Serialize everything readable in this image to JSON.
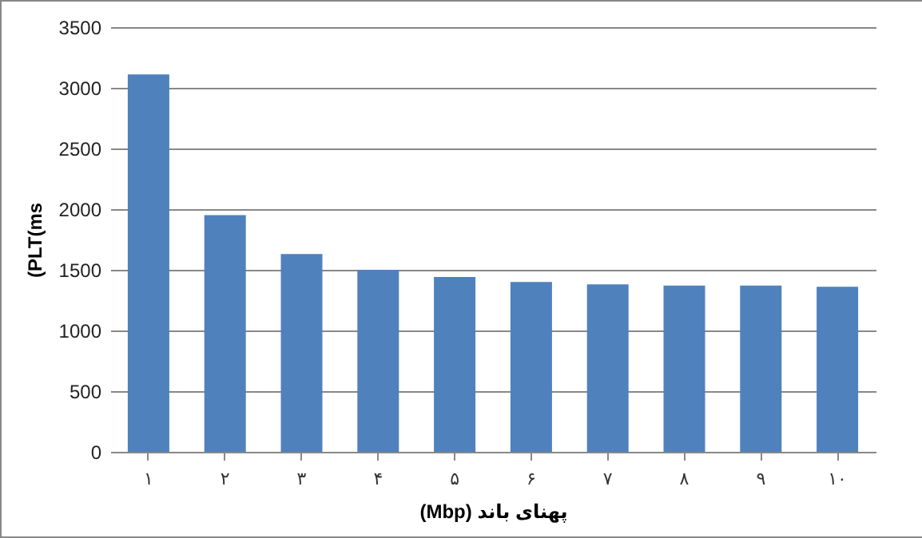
{
  "chart_data": {
    "type": "bar",
    "xlabel": "(Mbp) پهنای باند",
    "ylabel": "(PLT(ms",
    "categories": [
      "۱",
      "۲",
      "۳",
      "۴",
      "۵",
      "۶",
      "۷",
      "۸",
      "۹",
      "۱۰"
    ],
    "values": [
      3110,
      1950,
      1630,
      1500,
      1440,
      1400,
      1380,
      1370,
      1370,
      1360
    ],
    "color": "#4f81bd",
    "ylim": [
      0,
      3500
    ],
    "yticks": [
      0,
      500,
      1000,
      1500,
      2000,
      2500,
      3000,
      3500
    ],
    "grid": "y"
  }
}
